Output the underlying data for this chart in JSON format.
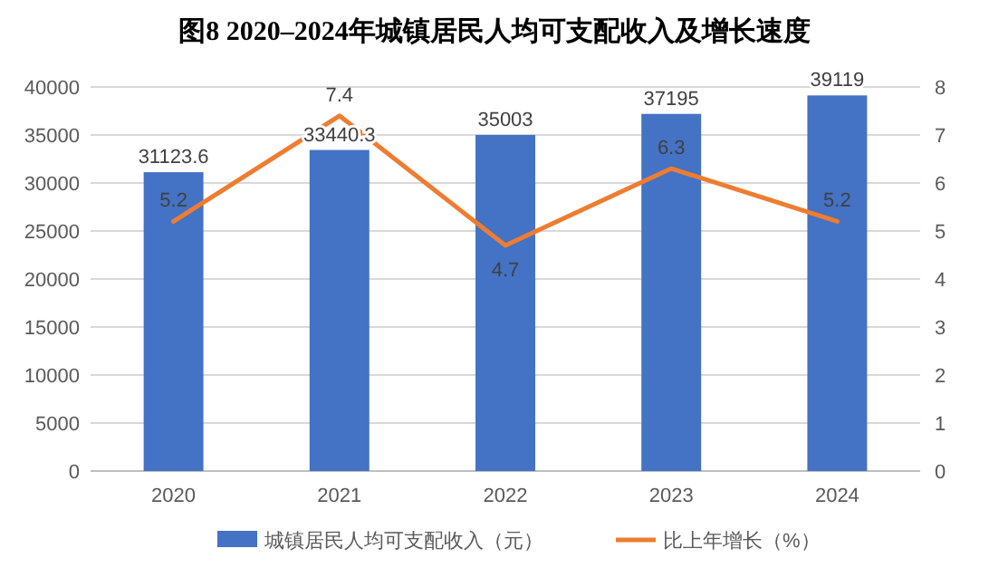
{
  "chart_data": {
    "type": "bar",
    "title": "图8 2020–2024年城镇居民人均可支配收入及增长速度",
    "categories": [
      "2020",
      "2021",
      "2022",
      "2023",
      "2024"
    ],
    "series": [
      {
        "name": "城镇居民人均可支配收入（元）",
        "color": "#4472c4",
        "values": [
          31123.6,
          33440.3,
          35003,
          37195,
          39119
        ]
      },
      {
        "name": "比上年增长（%）",
        "type": "line",
        "axis": "y2",
        "color": "#ed7d31",
        "values": [
          5.2,
          7.4,
          4.7,
          6.3,
          5.2
        ]
      }
    ],
    "ylim": [
      0,
      40000
    ],
    "yticks": [
      0,
      5000,
      10000,
      15000,
      20000,
      25000,
      30000,
      35000,
      40000
    ],
    "y2lim": [
      0,
      8
    ],
    "y2ticks": [
      0,
      1,
      2,
      3,
      4,
      5,
      6,
      7,
      8
    ],
    "grid": "y",
    "legend": "bottom",
    "data_labels": true,
    "marker": "none",
    "line_style": "solid"
  }
}
